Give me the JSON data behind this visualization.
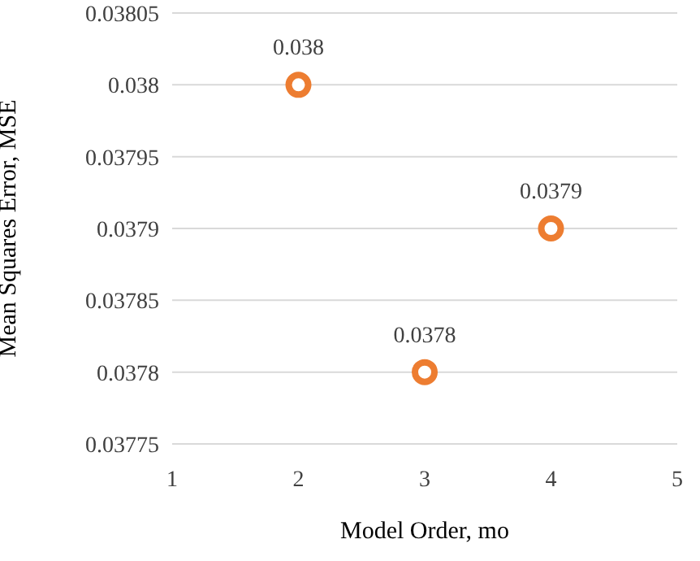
{
  "chart_data": {
    "type": "scatter",
    "xlabel": "Model Order, mo",
    "ylabel": "Mean Squares Error, MSE",
    "x": [
      2,
      3,
      4
    ],
    "values": [
      0.038,
      0.0378,
      0.0379
    ],
    "color": "#ed7d31",
    "marker": "circle",
    "data_labels": true,
    "xlim": [
      1,
      5
    ],
    "xticks": [
      1,
      2,
      3,
      4,
      5
    ],
    "ylim": [
      0.03775,
      0.03805
    ],
    "yticks": [
      0.03775,
      0.0378,
      0.03785,
      0.0379,
      0.03795,
      0.038,
      0.03805
    ],
    "grid": "y",
    "legend": false
  }
}
